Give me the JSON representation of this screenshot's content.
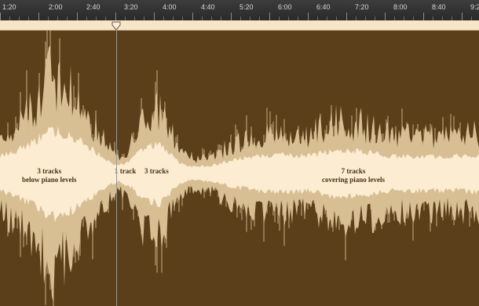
{
  "timeline": {
    "ticks": [
      "1:20",
      "2:00",
      "2:40",
      "3:20",
      "4:00",
      "4:40",
      "5:20",
      "6:00",
      "6:40",
      "7:20",
      "8:00",
      "8:40",
      "9:2"
    ]
  },
  "annotations": [
    {
      "line1": "3 tracks",
      "line2": "below piano levels"
    },
    {
      "line1": "1 track",
      "line2": ""
    },
    {
      "line1": "3 tracks",
      "line2": ""
    },
    {
      "line1": "7 tracks",
      "line2": "covering piano levels"
    }
  ],
  "colors": {
    "ruler_bg": "#333333",
    "locator_bar": "#f6e5c8",
    "track_bg": "#5a3f1a",
    "waveform_peak": "#d7bf93",
    "waveform_rms": "#fbecd2",
    "annotation_text": "#4a3212",
    "playhead": "#9a9a9a"
  },
  "icons": {
    "playhead": "playhead-marker-icon"
  }
}
